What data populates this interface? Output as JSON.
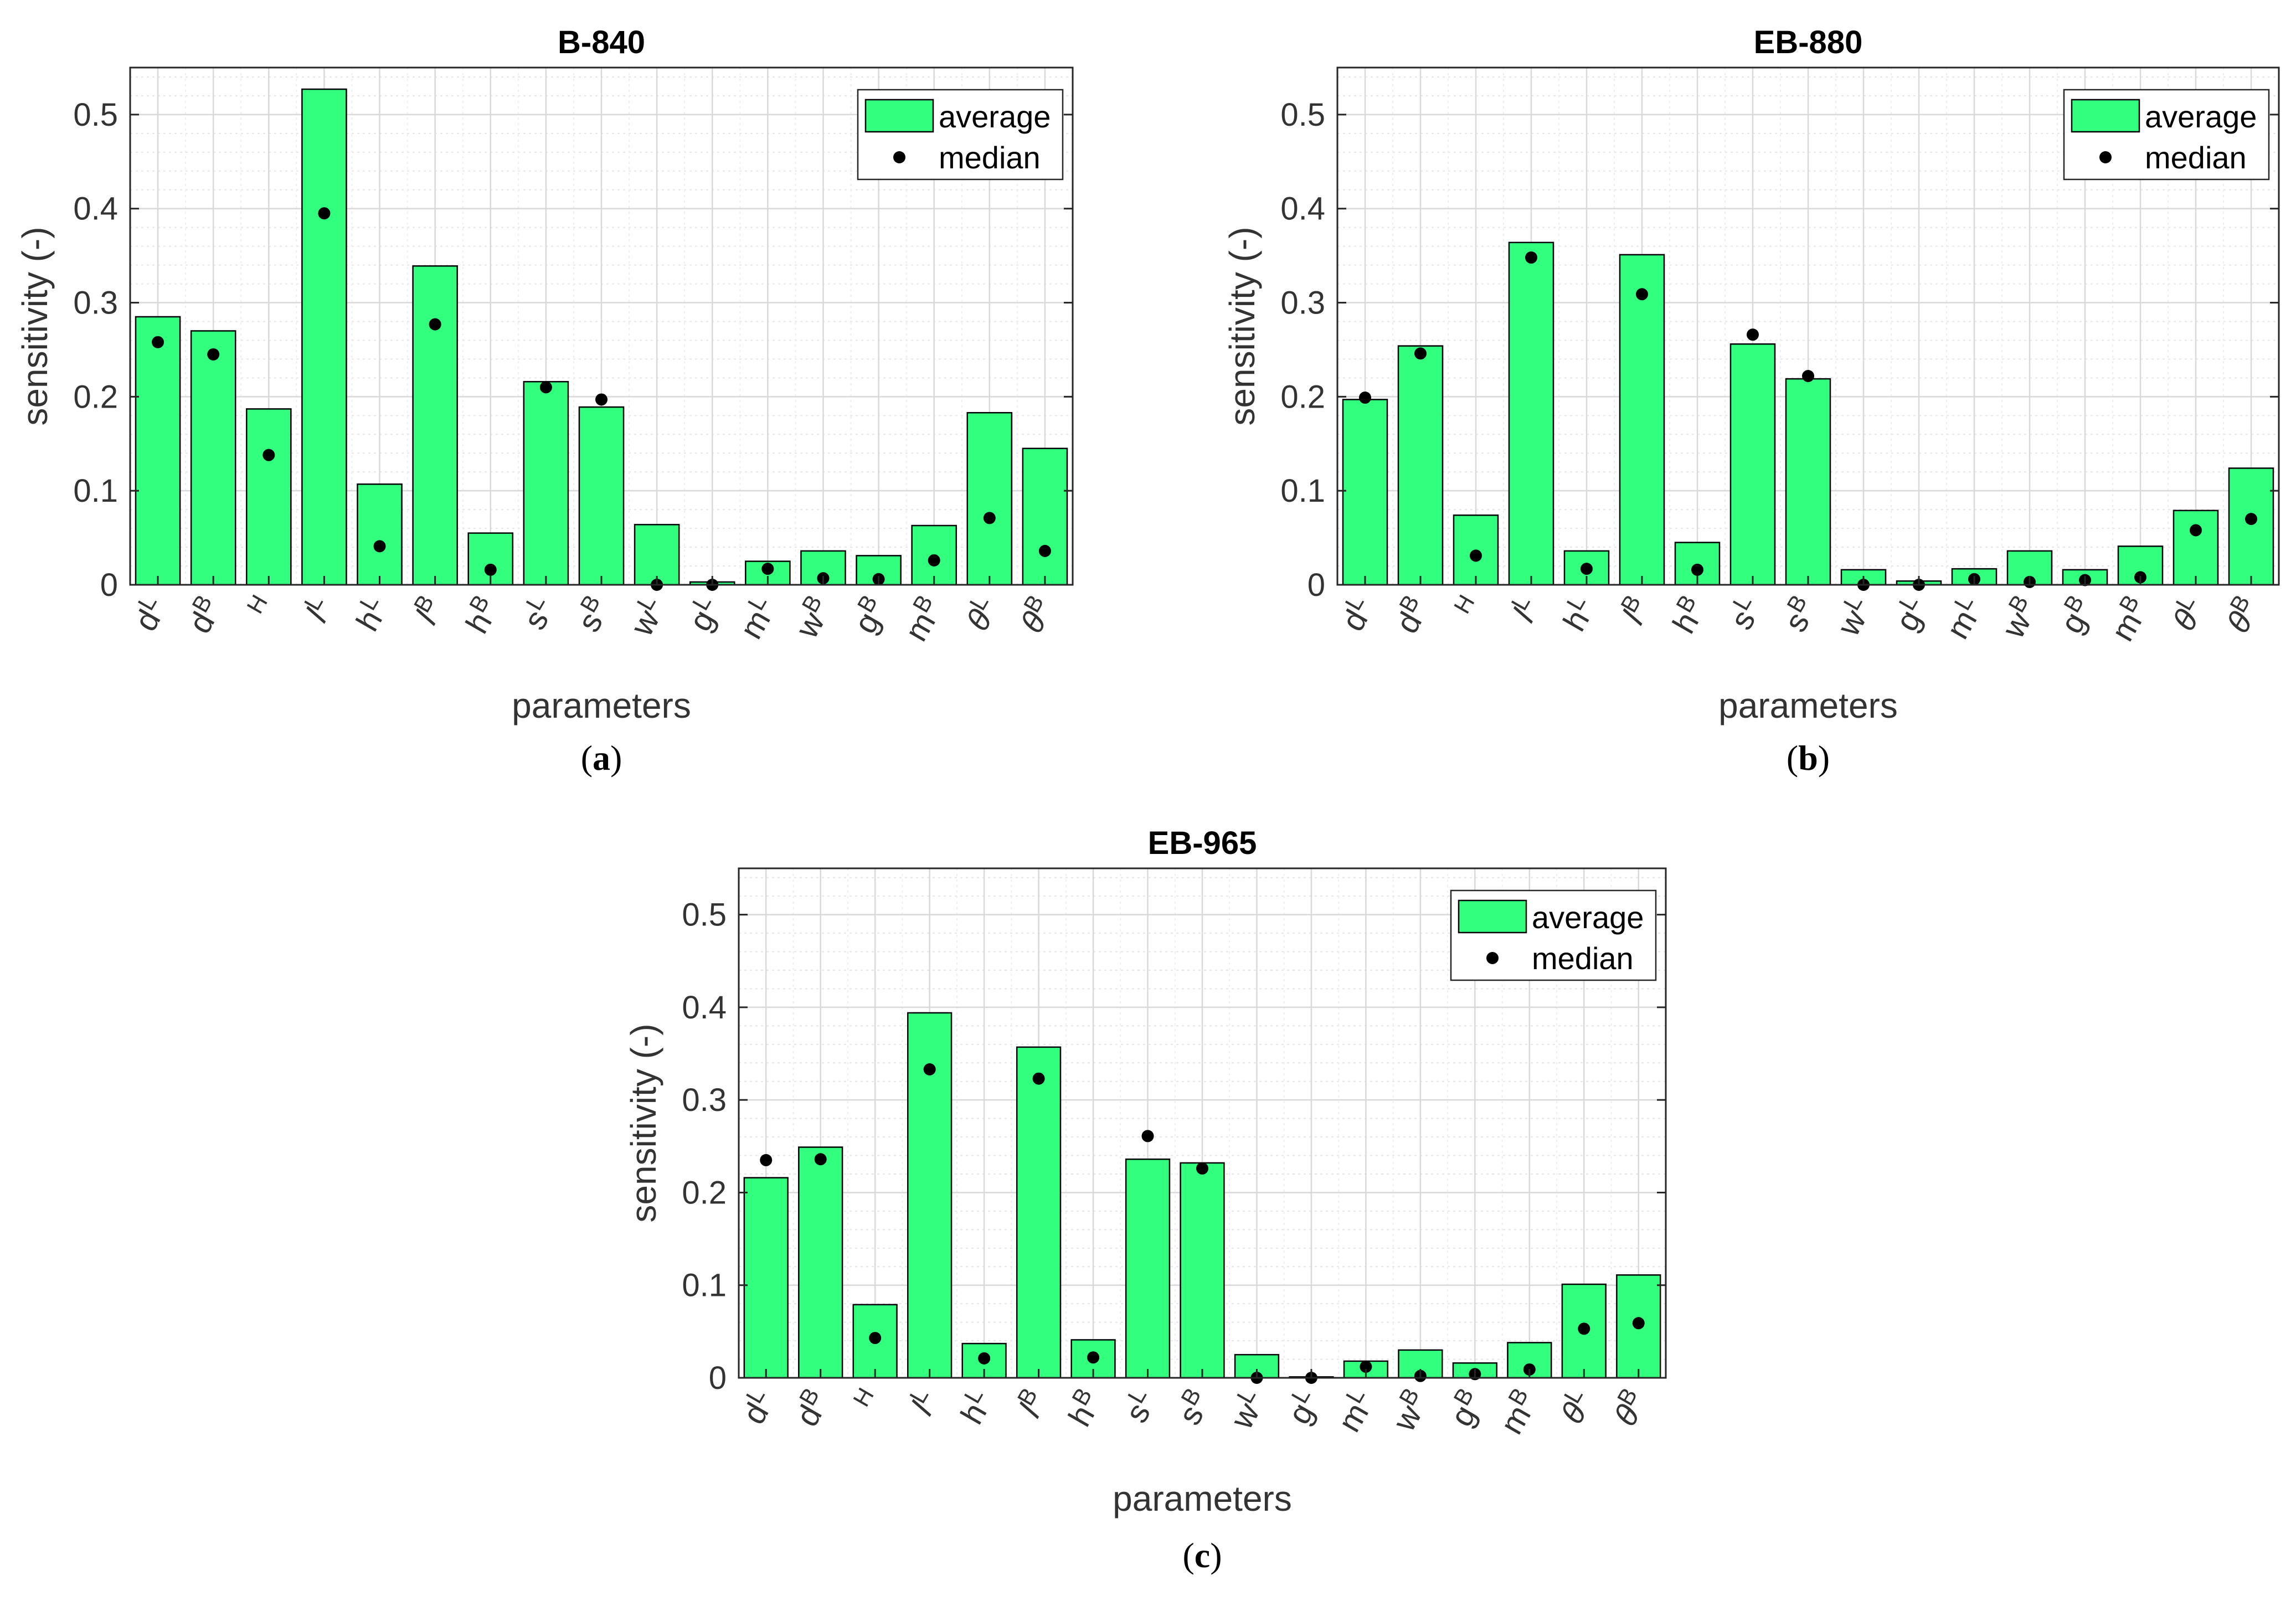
{
  "chart_data": [
    {
      "type": "bar",
      "title": "B-840",
      "caption": "a",
      "xlabel": "parameters",
      "ylabel": "sensitivity (-)",
      "ylim": [
        0,
        0.55
      ],
      "yticks": [
        "0",
        "0.1",
        "0.2",
        "0.3",
        "0.4",
        "0.5"
      ],
      "grid": "on",
      "legend_position": "top-right",
      "categories": [
        "dL",
        "dB",
        "H",
        "lL",
        "hL",
        "lB",
        "hB",
        "sL",
        "sB",
        "wL",
        "gL",
        "mL",
        "wB",
        "gB",
        "mB",
        "θL",
        "θB"
      ],
      "series": [
        {
          "name": "average",
          "kind": "bar",
          "color": "#33ff7f",
          "values": [
            0.285,
            0.27,
            0.187,
            0.527,
            0.107,
            0.339,
            0.055,
            0.216,
            0.189,
            0.064,
            0.003,
            0.025,
            0.036,
            0.031,
            0.063,
            0.183,
            0.145
          ]
        },
        {
          "name": "median",
          "kind": "dot",
          "color": "#000000",
          "values": [
            0.258,
            0.245,
            0.138,
            0.395,
            0.041,
            0.277,
            0.016,
            0.21,
            0.197,
            0.0,
            0.0,
            0.017,
            0.007,
            0.006,
            0.026,
            0.071,
            0.036
          ]
        }
      ]
    },
    {
      "type": "bar",
      "title": "EB-880",
      "caption": "b",
      "xlabel": "parameters",
      "ylabel": "sensitivity (-)",
      "ylim": [
        0,
        0.55
      ],
      "yticks": [
        "0",
        "0.1",
        "0.2",
        "0.3",
        "0.4",
        "0.5"
      ],
      "grid": "on",
      "legend_position": "top-right",
      "categories": [
        "dL",
        "dB",
        "H",
        "lL",
        "hL",
        "lB",
        "hB",
        "sL",
        "sB",
        "wL",
        "gL",
        "mL",
        "wB",
        "gB",
        "mB",
        "θL",
        "θB"
      ],
      "series": [
        {
          "name": "average",
          "kind": "bar",
          "color": "#33ff7f",
          "values": [
            0.197,
            0.254,
            0.074,
            0.364,
            0.036,
            0.351,
            0.045,
            0.256,
            0.219,
            0.016,
            0.004,
            0.017,
            0.036,
            0.016,
            0.041,
            0.079,
            0.124
          ]
        },
        {
          "name": "median",
          "kind": "dot",
          "color": "#000000",
          "values": [
            0.199,
            0.246,
            0.031,
            0.348,
            0.017,
            0.309,
            0.016,
            0.266,
            0.222,
            0.0,
            0.0,
            0.006,
            0.003,
            0.005,
            0.008,
            0.058,
            0.07
          ]
        }
      ]
    },
    {
      "type": "bar",
      "title": "EB-965",
      "caption": "c",
      "xlabel": "parameters",
      "ylabel": "sensitivity (-)",
      "ylim": [
        0,
        0.55
      ],
      "yticks": [
        "0",
        "0.1",
        "0.2",
        "0.3",
        "0.4",
        "0.5"
      ],
      "grid": "on",
      "legend_position": "top-right",
      "categories": [
        "dL",
        "dB",
        "H",
        "lL",
        "hL",
        "lB",
        "hB",
        "sL",
        "sB",
        "wL",
        "gL",
        "mL",
        "wB",
        "gB",
        "mB",
        "θL",
        "θB"
      ],
      "series": [
        {
          "name": "average",
          "kind": "bar",
          "color": "#33ff7f",
          "values": [
            0.216,
            0.249,
            0.079,
            0.394,
            0.037,
            0.357,
            0.041,
            0.236,
            0.232,
            0.025,
            0.001,
            0.018,
            0.03,
            0.016,
            0.038,
            0.101,
            0.111
          ]
        },
        {
          "name": "median",
          "kind": "dot",
          "color": "#000000",
          "values": [
            0.235,
            0.236,
            0.043,
            0.333,
            0.021,
            0.323,
            0.022,
            0.261,
            0.226,
            0.0,
            0.0,
            0.012,
            0.002,
            0.004,
            0.009,
            0.053,
            0.059
          ]
        }
      ]
    }
  ]
}
